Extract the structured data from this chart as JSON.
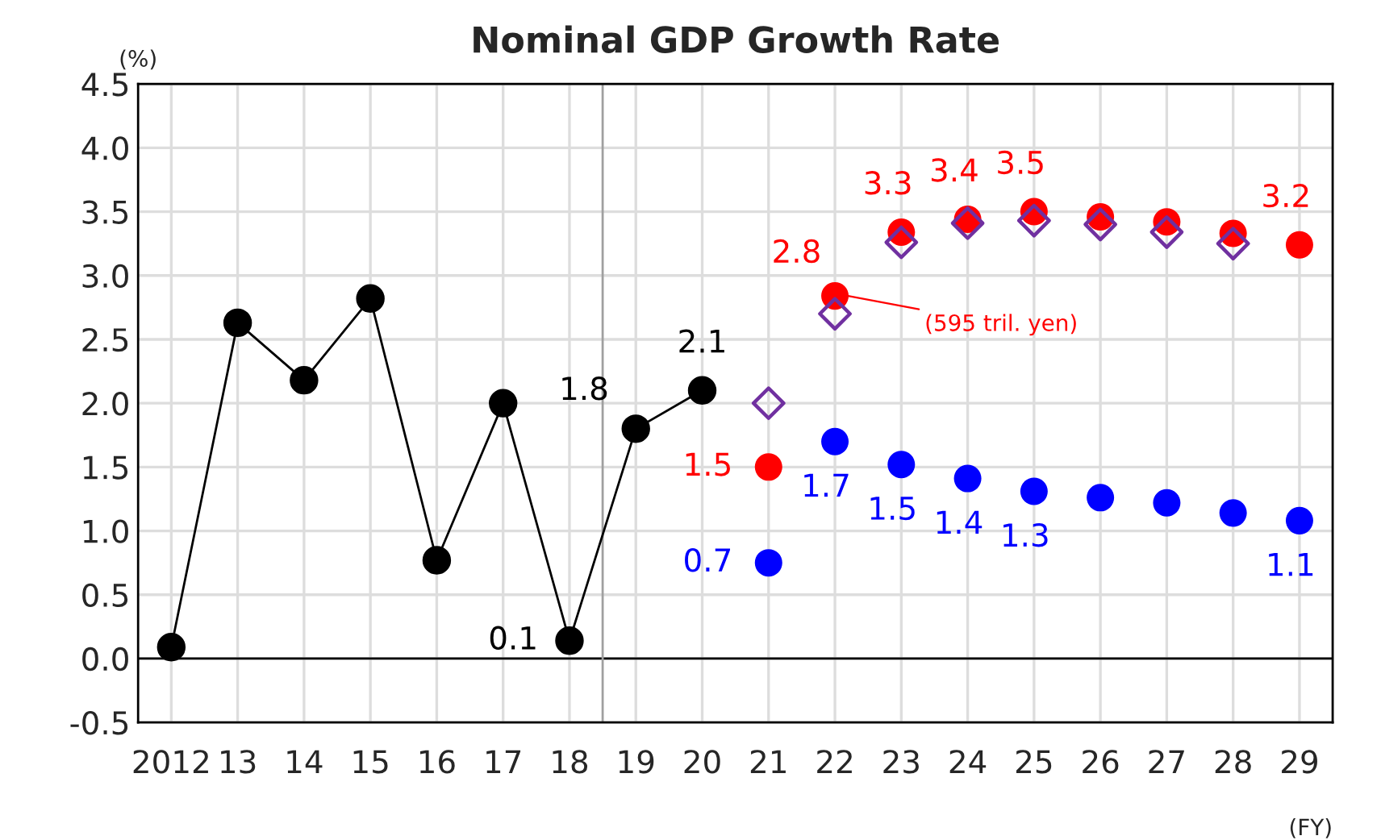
{
  "chart_data": {
    "type": "line",
    "title": "Nominal GDP Growth Rate",
    "ylabel": "(%)",
    "xlabel": "(FY)",
    "series": [
      {
        "color": "#000000",
        "marker": "circle",
        "x": [
          2012,
          2013,
          2014,
          2015,
          2016,
          2017,
          2018,
          2019,
          2020
        ],
        "values": [
          0.09,
          2.63,
          2.18,
          2.82,
          0.77,
          2.0,
          0.14,
          1.8,
          2.1
        ],
        "value_labels": [
          null,
          null,
          null,
          null,
          null,
          null,
          "0.1",
          "1.8",
          "2.1"
        ]
      },
      {
        "type": "scatter",
        "color": "#ff0000",
        "marker": "circle",
        "x": [
          2021,
          2022,
          2023,
          2024,
          2025,
          2026,
          2027,
          2028,
          2029
        ],
        "values": [
          1.5,
          2.84,
          3.34,
          3.44,
          3.5,
          3.46,
          3.42,
          3.33,
          3.24
        ],
        "value_labels": [
          "1.5",
          "2.8",
          "3.3",
          "3.4",
          "3.5",
          null,
          null,
          null,
          "3.2"
        ]
      },
      {
        "type": "scatter",
        "color": "#0000ff",
        "marker": "circle",
        "x": [
          2021,
          2022,
          2023,
          2024,
          2025,
          2026,
          2027,
          2028,
          2029
        ],
        "values": [
          0.75,
          1.7,
          1.52,
          1.41,
          1.31,
          1.26,
          1.22,
          1.14,
          1.08
        ],
        "value_labels": [
          "0.7",
          "1.7",
          "1.5",
          "1.4",
          "1.3",
          null,
          null,
          null,
          "1.1"
        ]
      },
      {
        "type": "scatter",
        "color": "#7030a0",
        "marker": "diamond",
        "x": [
          2021,
          2022,
          2023,
          2024,
          2025,
          2026,
          2027,
          2028
        ],
        "values": [
          2.0,
          2.7,
          3.26,
          3.41,
          3.43,
          3.4,
          3.34,
          3.25
        ]
      }
    ],
    "annotations": [
      {
        "text": "(595 tril. yen)",
        "x": 2022,
        "y": 2.86
      }
    ],
    "ref_lines": [
      {
        "axis": "y",
        "value": 0,
        "color": "#000000"
      },
      {
        "axis": "x",
        "value": 2018.5,
        "color": "#a0a0a0"
      }
    ],
    "xlim": [
      2011.5,
      2029.5
    ],
    "xticks": [
      2012,
      {
        "value": 2013,
        "label": "13"
      },
      {
        "value": 2014,
        "label": "14"
      },
      {
        "value": 2015,
        "label": "15"
      },
      {
        "value": 2016,
        "label": "16"
      },
      {
        "value": 2017,
        "label": "17"
      },
      {
        "value": 2018,
        "label": "18"
      },
      {
        "value": 2019,
        "label": "19"
      },
      {
        "value": 2020,
        "label": "20"
      },
      {
        "value": 2021,
        "label": "21"
      },
      {
        "value": 2022,
        "label": "22"
      },
      {
        "value": 2023,
        "label": "23"
      },
      {
        "value": 2024,
        "label": "24"
      },
      {
        "value": 2025,
        "label": "25"
      },
      {
        "value": 2026,
        "label": "26"
      },
      {
        "value": 2027,
        "label": "27"
      },
      {
        "value": 2028,
        "label": "28"
      },
      {
        "value": 2029,
        "label": "29"
      }
    ],
    "ylim": [
      -0.5,
      4.5
    ],
    "yticks": [
      {
        "value": -0.5,
        "label": "-0.5"
      },
      {
        "value": 0,
        "label": "0.0"
      },
      0.5,
      {
        "value": 1,
        "label": "1.0"
      },
      1.5,
      {
        "value": 2,
        "label": "2.0"
      },
      2.5,
      {
        "value": 3,
        "label": "3.0"
      },
      3.5,
      {
        "value": 4,
        "label": "4.0"
      },
      4.5
    ],
    "grid": true,
    "legend": false
  }
}
